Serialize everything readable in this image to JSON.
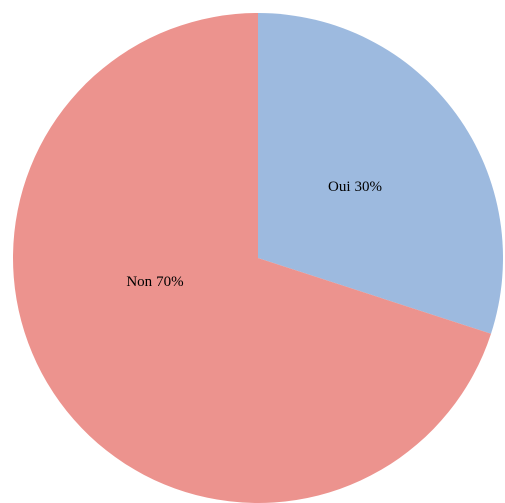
{
  "chart_data": {
    "type": "pie",
    "categories": [
      "Oui",
      "Non"
    ],
    "values": [
      30,
      70
    ],
    "value_labels": [
      "30%",
      "70%"
    ],
    "colors": [
      "#9dbadf",
      "#ec938e"
    ]
  }
}
